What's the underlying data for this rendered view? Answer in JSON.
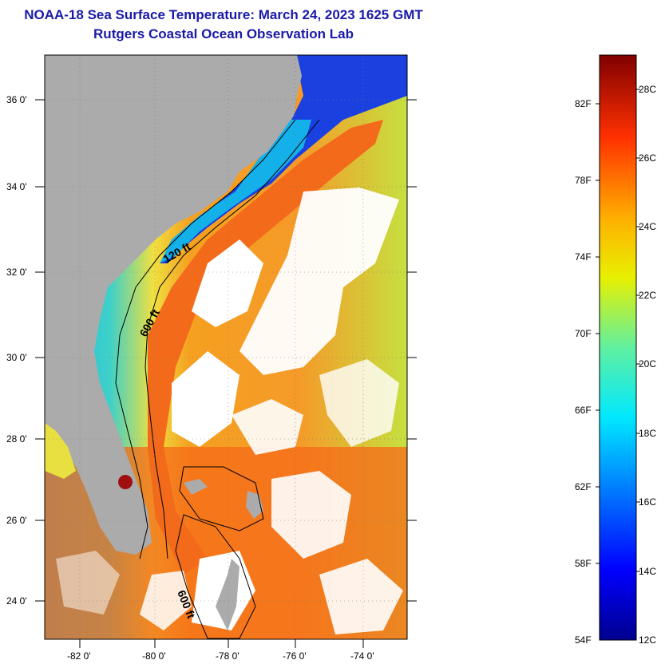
{
  "title": "NOAA-18 Sea Surface Temperature:  March 24, 2023 1625 GMT",
  "subtitle": "Rutgers Coastal Ocean Observation Lab",
  "lat_labels": [
    "36 0'",
    "34 0'",
    "32 0'",
    "30 0'",
    "28 0'",
    "26 0'",
    "24 0'"
  ],
  "lon_labels": [
    "-82 0'",
    "-80 0'",
    "-78 0'",
    "-76 0'",
    "-74 0'"
  ],
  "contour_labels": [
    "120 ft",
    "600 ft",
    "600 ft"
  ],
  "colorbar": {
    "fahrenheit": [
      "82F",
      "78F",
      "74F",
      "70F",
      "66F",
      "62F",
      "58F",
      "54F"
    ],
    "celsius": [
      "28C",
      "26C",
      "24C",
      "22C",
      "20C",
      "18C",
      "16C",
      "14C",
      "12C"
    ]
  },
  "colors": {
    "title": "#1a1aa8",
    "land": "#ababab",
    "cloud": "#ffffff"
  }
}
